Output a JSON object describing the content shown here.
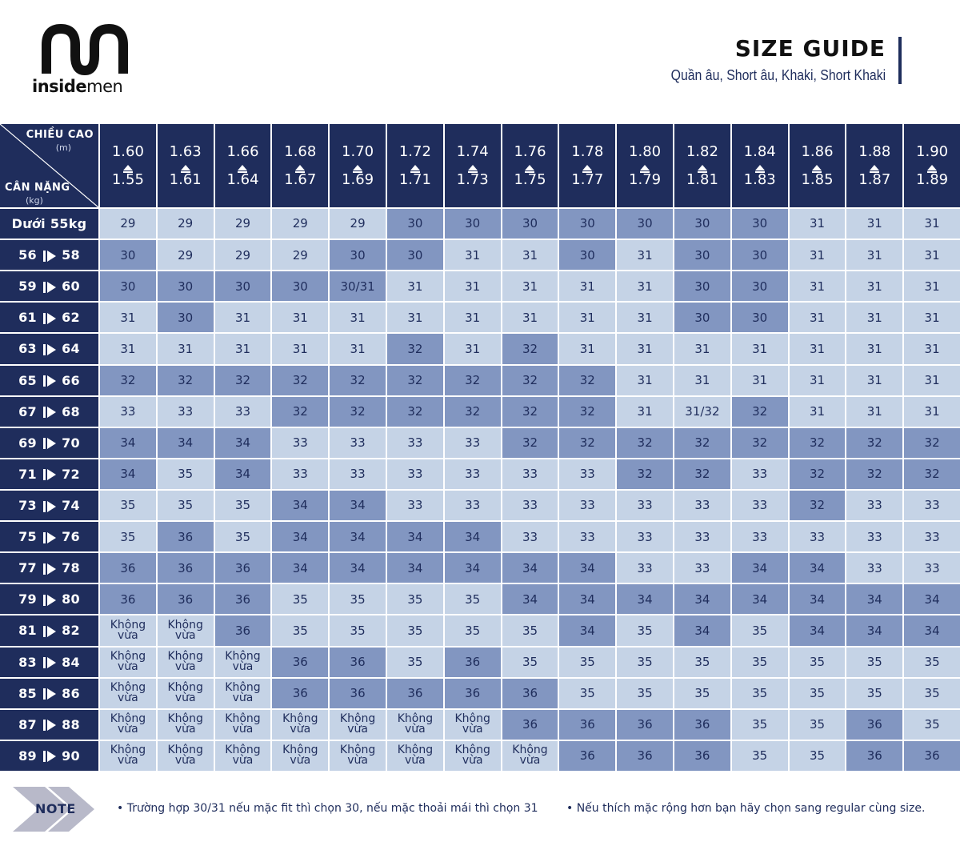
{
  "brand": {
    "name_bold": "inside",
    "name_light": "men"
  },
  "header": {
    "title": "SIZE GUIDE",
    "subtitle": "Quần âu, Short âu, Khaki, Short Khaki"
  },
  "corner": {
    "height_label": "CHIỀU CAO",
    "height_unit": "(m)",
    "weight_label": "CÂN NẶNG",
    "weight_unit": "(kg)"
  },
  "columns": [
    {
      "top": "1.60",
      "bottom": "1.55"
    },
    {
      "top": "1.63",
      "bottom": "1.61"
    },
    {
      "top": "1.66",
      "bottom": "1.64"
    },
    {
      "top": "1.68",
      "bottom": "1.67"
    },
    {
      "top": "1.70",
      "bottom": "1.69"
    },
    {
      "top": "1.72",
      "bottom": "1.71"
    },
    {
      "top": "1.74",
      "bottom": "1.73"
    },
    {
      "top": "1.76",
      "bottom": "1.75"
    },
    {
      "top": "1.78",
      "bottom": "1.77"
    },
    {
      "top": "1.80",
      "bottom": "1.79"
    },
    {
      "top": "1.82",
      "bottom": "1.81"
    },
    {
      "top": "1.84",
      "bottom": "1.83"
    },
    {
      "top": "1.86",
      "bottom": "1.85"
    },
    {
      "top": "1.88",
      "bottom": "1.87"
    },
    {
      "top": "1.90",
      "bottom": "1.89"
    }
  ],
  "rows": [
    {
      "label": "Dưới 55kg",
      "values": [
        "29",
        "29",
        "29",
        "29",
        "29",
        "30",
        "30",
        "30",
        "30",
        "30",
        "30",
        "30",
        "31",
        "31",
        "31"
      ],
      "shade": [
        0,
        0,
        0,
        0,
        0,
        1,
        1,
        1,
        1,
        1,
        1,
        1,
        0,
        0,
        0
      ]
    },
    {
      "from": "56",
      "to": "58",
      "values": [
        "30",
        "29",
        "29",
        "29",
        "30",
        "30",
        "31",
        "31",
        "30",
        "31",
        "30",
        "30",
        "31",
        "31",
        "31"
      ],
      "shade": [
        1,
        0,
        0,
        0,
        1,
        1,
        0,
        0,
        1,
        0,
        1,
        1,
        0,
        0,
        0
      ]
    },
    {
      "from": "59",
      "to": "60",
      "values": [
        "30",
        "30",
        "30",
        "30",
        "30/31",
        "31",
        "31",
        "31",
        "31",
        "31",
        "30",
        "30",
        "31",
        "31",
        "31"
      ],
      "shade": [
        1,
        1,
        1,
        1,
        1,
        0,
        0,
        0,
        0,
        0,
        1,
        1,
        0,
        0,
        0
      ]
    },
    {
      "from": "61",
      "to": "62",
      "values": [
        "31",
        "30",
        "31",
        "31",
        "31",
        "31",
        "31",
        "31",
        "31",
        "31",
        "30",
        "30",
        "31",
        "31",
        "31"
      ],
      "shade": [
        0,
        1,
        0,
        0,
        0,
        0,
        0,
        0,
        0,
        0,
        1,
        1,
        0,
        0,
        0
      ]
    },
    {
      "from": "63",
      "to": "64",
      "values": [
        "31",
        "31",
        "31",
        "31",
        "31",
        "32",
        "31",
        "32",
        "31",
        "31",
        "31",
        "31",
        "31",
        "31",
        "31"
      ],
      "shade": [
        0,
        0,
        0,
        0,
        0,
        1,
        0,
        1,
        0,
        0,
        0,
        0,
        0,
        0,
        0
      ]
    },
    {
      "from": "65",
      "to": "66",
      "values": [
        "32",
        "32",
        "32",
        "32",
        "32",
        "32",
        "32",
        "32",
        "32",
        "31",
        "31",
        "31",
        "31",
        "31",
        "31"
      ],
      "shade": [
        1,
        1,
        1,
        1,
        1,
        1,
        1,
        1,
        1,
        0,
        0,
        0,
        0,
        0,
        0
      ]
    },
    {
      "from": "67",
      "to": "68",
      "values": [
        "33",
        "33",
        "33",
        "32",
        "32",
        "32",
        "32",
        "32",
        "32",
        "31",
        "31/32",
        "32",
        "31",
        "31",
        "31"
      ],
      "shade": [
        0,
        0,
        0,
        1,
        1,
        1,
        1,
        1,
        1,
        0,
        0,
        1,
        0,
        0,
        0
      ]
    },
    {
      "from": "69",
      "to": "70",
      "values": [
        "34",
        "34",
        "34",
        "33",
        "33",
        "33",
        "33",
        "32",
        "32",
        "32",
        "32",
        "32",
        "32",
        "32",
        "32"
      ],
      "shade": [
        1,
        1,
        1,
        0,
        0,
        0,
        0,
        1,
        1,
        1,
        1,
        1,
        1,
        1,
        1
      ]
    },
    {
      "from": "71",
      "to": "72",
      "values": [
        "34",
        "35",
        "34",
        "33",
        "33",
        "33",
        "33",
        "33",
        "33",
        "32",
        "32",
        "33",
        "32",
        "32",
        "32"
      ],
      "shade": [
        1,
        0,
        1,
        0,
        0,
        0,
        0,
        0,
        0,
        1,
        1,
        0,
        1,
        1,
        1
      ]
    },
    {
      "from": "73",
      "to": "74",
      "values": [
        "35",
        "35",
        "35",
        "34",
        "34",
        "33",
        "33",
        "33",
        "33",
        "33",
        "33",
        "33",
        "32",
        "33",
        "33"
      ],
      "shade": [
        0,
        0,
        0,
        1,
        1,
        0,
        0,
        0,
        0,
        0,
        0,
        0,
        1,
        0,
        0
      ]
    },
    {
      "from": "75",
      "to": "76",
      "values": [
        "35",
        "36",
        "35",
        "34",
        "34",
        "34",
        "34",
        "33",
        "33",
        "33",
        "33",
        "33",
        "33",
        "33",
        "33"
      ],
      "shade": [
        0,
        1,
        0,
        1,
        1,
        1,
        1,
        0,
        0,
        0,
        0,
        0,
        0,
        0,
        0
      ]
    },
    {
      "from": "77",
      "to": "78",
      "values": [
        "36",
        "36",
        "36",
        "34",
        "34",
        "34",
        "34",
        "34",
        "34",
        "33",
        "33",
        "34",
        "34",
        "33",
        "33"
      ],
      "shade": [
        1,
        1,
        1,
        1,
        1,
        1,
        1,
        1,
        1,
        0,
        0,
        1,
        1,
        0,
        0
      ]
    },
    {
      "from": "79",
      "to": "80",
      "values": [
        "36",
        "36",
        "36",
        "35",
        "35",
        "35",
        "35",
        "34",
        "34",
        "34",
        "34",
        "34",
        "34",
        "34",
        "34"
      ],
      "shade": [
        1,
        1,
        1,
        0,
        0,
        0,
        0,
        1,
        1,
        1,
        1,
        1,
        1,
        1,
        1
      ]
    },
    {
      "from": "81",
      "to": "82",
      "values": [
        "Không vừa",
        "Không vừa",
        "36",
        "35",
        "35",
        "35",
        "35",
        "35",
        "34",
        "35",
        "34",
        "35",
        "34",
        "34",
        "34"
      ],
      "shade": [
        0,
        0,
        1,
        0,
        0,
        0,
        0,
        0,
        1,
        0,
        1,
        0,
        1,
        1,
        1
      ]
    },
    {
      "from": "83",
      "to": "84",
      "values": [
        "Không vừa",
        "Không vừa",
        "Không vừa",
        "36",
        "36",
        "35",
        "36",
        "35",
        "35",
        "35",
        "35",
        "35",
        "35",
        "35",
        "35"
      ],
      "shade": [
        0,
        0,
        0,
        1,
        1,
        0,
        1,
        0,
        0,
        0,
        0,
        0,
        0,
        0,
        0
      ]
    },
    {
      "from": "85",
      "to": "86",
      "values": [
        "Không vừa",
        "Không vừa",
        "Không vừa",
        "36",
        "36",
        "36",
        "36",
        "36",
        "35",
        "35",
        "35",
        "35",
        "35",
        "35",
        "35"
      ],
      "shade": [
        0,
        0,
        0,
        1,
        1,
        1,
        1,
        1,
        0,
        0,
        0,
        0,
        0,
        0,
        0
      ]
    },
    {
      "from": "87",
      "to": "88",
      "values": [
        "Không vừa",
        "Không vừa",
        "Không vừa",
        "Không vừa",
        "Không vừa",
        "Không vừa",
        "Không vừa",
        "36",
        "36",
        "36",
        "36",
        "35",
        "35",
        "36",
        "35"
      ],
      "shade": [
        0,
        0,
        0,
        0,
        0,
        0,
        0,
        1,
        1,
        1,
        1,
        0,
        0,
        1,
        0
      ]
    },
    {
      "from": "89",
      "to": "90",
      "values": [
        "Không vừa",
        "Không vừa",
        "Không vừa",
        "Không vừa",
        "Không vừa",
        "Không vừa",
        "Không vừa",
        "Không vừa",
        "36",
        "36",
        "36",
        "35",
        "35",
        "36",
        "36"
      ],
      "shade": [
        0,
        0,
        0,
        0,
        0,
        0,
        0,
        0,
        1,
        1,
        1,
        0,
        0,
        1,
        1
      ]
    }
  ],
  "note": {
    "label": "NOTE",
    "items": [
      "• Trường hợp 30/31 nếu mặc fit thì chọn 30, nếu mặc thoải mái thì chọn 31",
      "• Nếu thích mặc rộng hơn bạn hãy chọn sang regular cùng size."
    ]
  },
  "colors": {
    "navy": "#1f2d5c",
    "light_cell": "#c5d3e6",
    "dark_cell": "#8296c1",
    "chevron": "#b8b9c9"
  },
  "icons": [
    "insidemen-logo",
    "up-arrow-icon",
    "right-arrow-icon",
    "note-chevron-icon"
  ]
}
